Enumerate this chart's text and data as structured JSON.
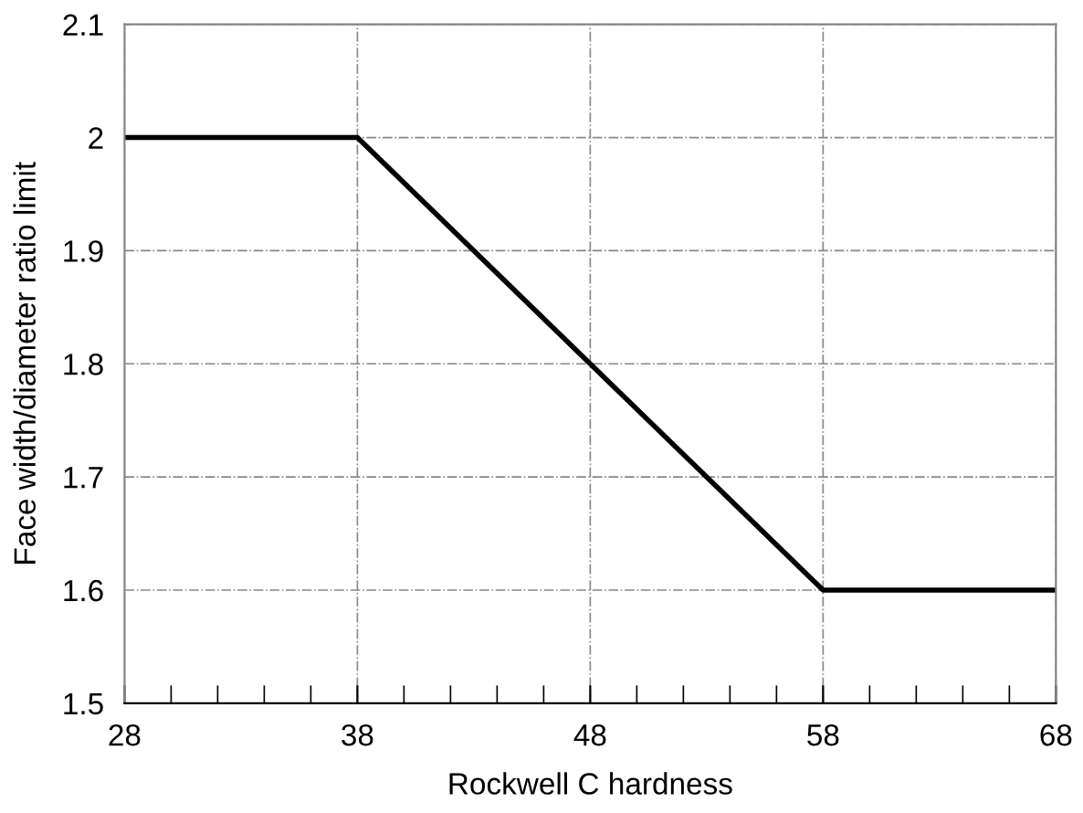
{
  "chart_data": {
    "type": "line",
    "xlabel": "Rockwell C hardness",
    "ylabel": "Face width/diameter ratio limit",
    "x": [
      28,
      38,
      58,
      68
    ],
    "series": [
      {
        "color": "#000000",
        "values": [
          2,
          2,
          1.6,
          1.6
        ]
      }
    ],
    "xlim": [
      28,
      68
    ],
    "ylim": [
      1.5,
      2.1
    ],
    "xticks": [
      28,
      {
        "value": 30,
        "label": null
      },
      {
        "value": 32,
        "label": null
      },
      {
        "value": 34,
        "label": null
      },
      {
        "value": 36,
        "label": null
      },
      38,
      {
        "value": 40,
        "label": null
      },
      {
        "value": 42,
        "label": null
      },
      {
        "value": 44,
        "label": null
      },
      {
        "value": 46,
        "label": null
      },
      48,
      {
        "value": 50,
        "label": null
      },
      {
        "value": 52,
        "label": null
      },
      {
        "value": 54,
        "label": null
      },
      {
        "value": 56,
        "label": null
      },
      58,
      {
        "value": 60,
        "label": null
      },
      {
        "value": 62,
        "label": null
      },
      {
        "value": 64,
        "label": null
      },
      {
        "value": 66,
        "label": null
      },
      68
    ],
    "yticks": [
      1.5,
      1.6,
      1.7,
      1.8,
      1.9,
      2,
      2.1
    ],
    "grid": true,
    "marker": "none",
    "line_style": "solid"
  }
}
